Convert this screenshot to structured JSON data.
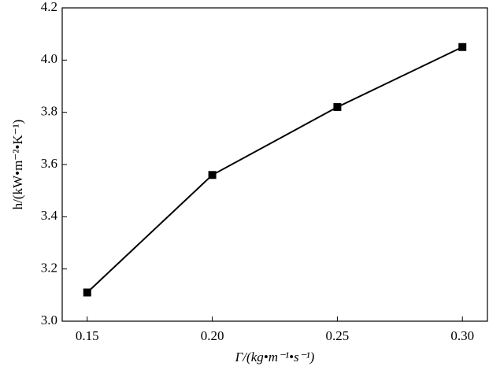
{
  "chart_data": {
    "type": "line",
    "x": [
      0.15,
      0.2,
      0.25,
      0.3
    ],
    "series": [
      {
        "color": "#000000",
        "values": [
          3.11,
          3.56,
          3.82,
          4.05
        ]
      }
    ],
    "xlim": [
      0.14,
      0.31
    ],
    "ylim": [
      3.0,
      4.2
    ],
    "xticks": [
      {
        "value": 0.15,
        "label": "0.15"
      },
      {
        "value": 0.2,
        "label": "0.20"
      },
      {
        "value": 0.25,
        "label": "0.25"
      },
      {
        "value": 0.3,
        "label": "0.30"
      }
    ],
    "yticks": [
      {
        "value": 3.0,
        "label": "3.0"
      },
      3.2,
      3.4,
      3.6,
      3.8,
      {
        "value": 4.0,
        "label": "4.0"
      },
      4.2
    ],
    "xlabel": "Γ/(kg•m⁻¹•s⁻¹)",
    "ylabel": "h/(kW•m⁻²•K⁻¹)"
  }
}
